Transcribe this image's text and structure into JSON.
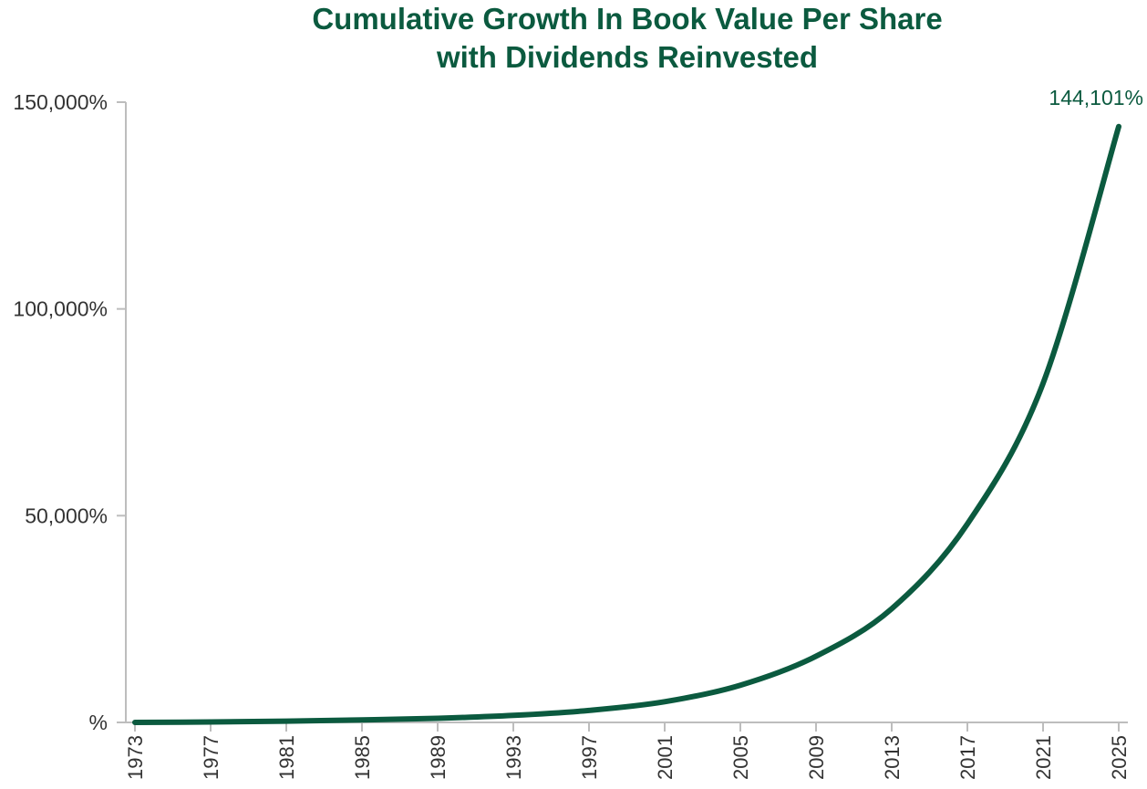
{
  "chart_data": {
    "type": "line",
    "title_line1": "Cumulative Growth In Book Value Per Share",
    "title_line2": "with Dividends Reinvested",
    "xlabel": "",
    "ylabel": "",
    "ylim": [
      0,
      150000
    ],
    "xlim": [
      1973,
      2025
    ],
    "y_ticks": [
      0,
      50000,
      100000,
      150000
    ],
    "y_tick_labels": [
      "%",
      "50,000%",
      "100,000%",
      "150,000%"
    ],
    "x_ticks": [
      1973,
      1977,
      1981,
      1985,
      1989,
      1993,
      1997,
      2001,
      2005,
      2009,
      2013,
      2017,
      2021,
      2025
    ],
    "x_tick_labels": [
      "1973",
      "1977",
      "1981",
      "1985",
      "1989",
      "1993",
      "1997",
      "2001",
      "2005",
      "2009",
      "2013",
      "2017",
      "2021",
      "2025"
    ],
    "end_label": "144,101%",
    "grid": false,
    "color": "#0b5a3f",
    "series": [
      {
        "x": [
          1973,
          1977,
          1981,
          1985,
          1989,
          1993,
          1997,
          2001,
          2005,
          2009,
          2013,
          2017,
          2021,
          2025
        ],
        "values": [
          0,
          100,
          300,
          600,
          1000,
          1700,
          2900,
          5000,
          9000,
          16000,
          27500,
          48000,
          82000,
          144101
        ]
      }
    ]
  }
}
